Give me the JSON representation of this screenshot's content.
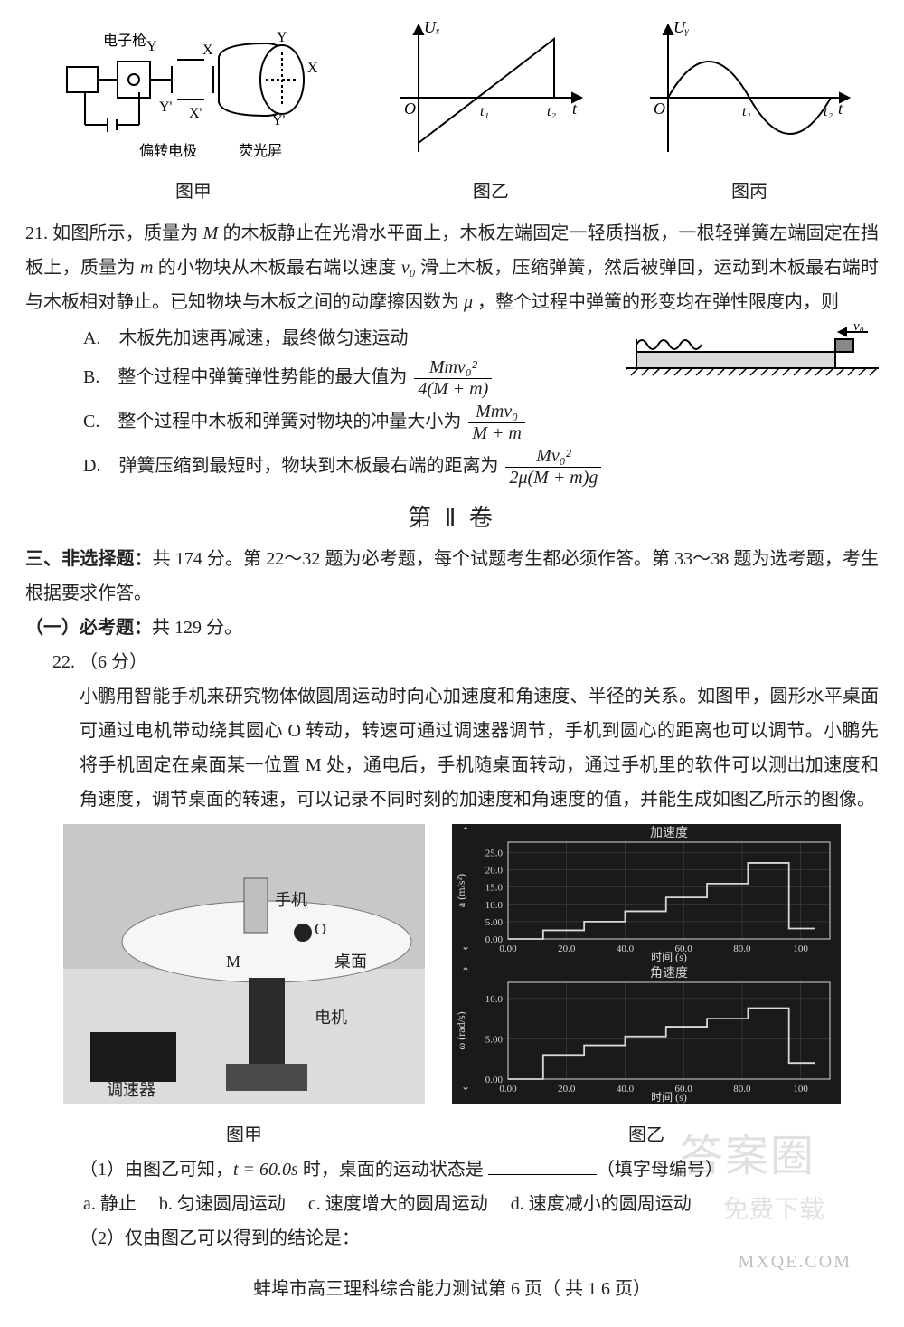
{
  "topfigs": {
    "jia": {
      "cap": "图甲",
      "labels": [
        "电子枪",
        "偏转电极",
        "荧光屏",
        "Y",
        "Y'",
        "X",
        "X'"
      ]
    },
    "yi": {
      "cap": "图乙",
      "ylabel": "Uₓ",
      "xlabel": "t",
      "t1": "t₁",
      "t2": "t₂"
    },
    "bing": {
      "cap": "图丙",
      "ylabel": "Uᵧ",
      "xlabel": "t",
      "t1": "t₁",
      "t2": "t₂"
    }
  },
  "q21": {
    "num": "21.",
    "text1": "如图所示，质量为 ",
    "M": "M",
    "text2": " 的木板静止在光滑水平面上，木板左端固定一轻质挡板，一根轻弹簧左端固定在挡板上，质量为 ",
    "m": "m",
    "text3": " 的小物块从木板最右端以速度 ",
    "v0": "v₀",
    "text4": " 滑上木板，压缩弹簧，然后被弹回，运动到木板最右端时与木板相对静止。已知物块与木板之间的动摩擦因数为 ",
    "mu": "μ",
    "text5": "，整个过程中弹簧的形变均在弹性限度内，则",
    "A": "A.　木板先加速再减速，最终做匀速运动",
    "B_pre": "B.　整个过程中弹簧弹性势能的最大值为",
    "B_num": "Mmv₀²",
    "B_den": "4(M + m)",
    "C_pre": "C.　整个过程中木板和弹簧对物块的冲量大小为",
    "C_num": "Mmv₀",
    "C_den": "M + m",
    "D_pre": "D.　弹簧压缩到最短时，物块到木板最右端的距离为",
    "D_num": "Mv₀²",
    "D_den": "2μ(M + m)g",
    "fig_v0": "v₀"
  },
  "sec2": "第 Ⅱ 卷",
  "nx": {
    "tag": "三、非选择题：",
    "line1": "共 174 分。第 22～32 题为必考题，每个试题考生都必须作答。第 33～38 题为选考题，考生根据要求作答。",
    "bktag": "（一）必考题：",
    "bk": "共 129 分。"
  },
  "q22": {
    "num": "22.",
    "pts": "（6 分）",
    "para": "小鹏用智能手机来研究物体做圆周运动时向心加速度和角速度、半径的关系。如图甲，圆形水平桌面可通过电机带动绕其圆心 O 转动，转速可通过调速器调节，手机到圆心的距离也可以调节。小鹏先将手机固定在桌面某一位置 M 处，通电后，手机随桌面转动，通过手机里的软件可以测出加速度和角速度，调节桌面的转速，可以记录不同时刻的加速度和角速度的值，并能生成如图乙所示的图像。",
    "capJia": "图甲",
    "capYi": "图乙",
    "jiaLabels": {
      "phone": "手机",
      "O": "O",
      "desk": "桌面",
      "M": "M",
      "motor": "电机",
      "reg": "调速器"
    },
    "yiChartA": {
      "title": "加速度",
      "ylabel": "a (m/s²)",
      "xlabel": "时间 (s)",
      "ylim": [
        0,
        28
      ],
      "yticks": [
        "0.00",
        "5.00",
        "10.0",
        "15.0",
        "20.0",
        "25.0"
      ],
      "xlim": [
        0,
        110
      ],
      "xticks": [
        "0.00",
        "20.0",
        "40.0",
        "60.0",
        "80.0",
        "100"
      ],
      "steps": [
        [
          0,
          0
        ],
        [
          8,
          0
        ],
        [
          12,
          2.5
        ],
        [
          22,
          2.5
        ],
        [
          26,
          5
        ],
        [
          36,
          5
        ],
        [
          40,
          8
        ],
        [
          50,
          8
        ],
        [
          54,
          12
        ],
        [
          64,
          12
        ],
        [
          68,
          16
        ],
        [
          78,
          16
        ],
        [
          82,
          22
        ],
        [
          92,
          22
        ],
        [
          96,
          3
        ],
        [
          105,
          3
        ]
      ],
      "bg": "#1a1a1a",
      "line": "#d8d8d8",
      "grid": "#444",
      "text": "#d8d8d8"
    },
    "yiChartW": {
      "title": "角速度",
      "ylabel": "ω (rad/s)",
      "xlabel": "时间 (s)",
      "ylim": [
        0,
        12
      ],
      "yticks": [
        "0.00",
        "5.00",
        "10.0"
      ],
      "xlim": [
        0,
        110
      ],
      "xticks": [
        "0.00",
        "20.0",
        "40.0",
        "60.0",
        "80.0",
        "100"
      ],
      "steps": [
        [
          0,
          0
        ],
        [
          8,
          0
        ],
        [
          12,
          3
        ],
        [
          22,
          3
        ],
        [
          26,
          4.2
        ],
        [
          36,
          4.2
        ],
        [
          40,
          5.3
        ],
        [
          50,
          5.3
        ],
        [
          54,
          6.5
        ],
        [
          64,
          6.5
        ],
        [
          68,
          7.5
        ],
        [
          78,
          7.5
        ],
        [
          82,
          8.8
        ],
        [
          92,
          8.8
        ],
        [
          96,
          2
        ],
        [
          105,
          2
        ]
      ],
      "bg": "#1a1a1a",
      "line": "#d8d8d8",
      "grid": "#444",
      "text": "#d8d8d8"
    },
    "sub1_pre": "（1）由图乙可知，",
    "sub1_t": "t = 60.0s",
    "sub1_mid": " 时，桌面的运动状态是 ",
    "sub1_post": "（填字母编号）",
    "opt_a": "a. 静止",
    "opt_b": "b. 匀速圆周运动",
    "opt_c": "c. 速度增大的圆周运动",
    "opt_d": "d. 速度减小的圆周运动",
    "sub2": "（2）仅由图乙可以得到的结论是："
  },
  "footer": "蚌埠市高三理科综合能力测试第 6 页（ 共 1 6 页）",
  "wm": {
    "name": "答案圈",
    "text": "免费下载",
    "url": "MXQE.COM"
  }
}
